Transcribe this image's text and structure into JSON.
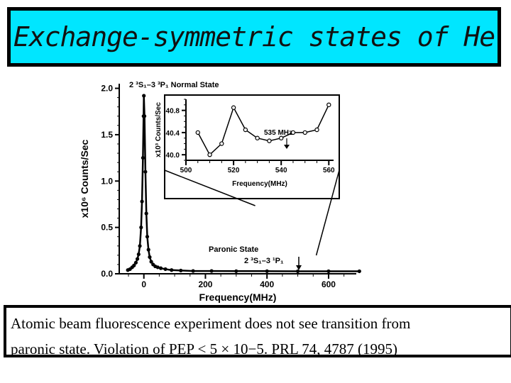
{
  "slide": {
    "title": "Exchange-symmetric states of He",
    "caption_line1": "Atomic beam fluorescence experiment does not see transition from",
    "caption_line2": "paronic state. Violation of PEP < 5 × 10−5. PRL 74, 4787 (1995)"
  },
  "chart_data": [
    {
      "type": "line",
      "xlabel": "Frequency(MHz)",
      "ylabel": "x10⁶ Counts/Sec",
      "xlim": [
        -80,
        690
      ],
      "ylim": [
        0,
        2.05
      ],
      "xticks": [
        0,
        200,
        400,
        600
      ],
      "yticks": [
        0.0,
        0.5,
        1.0,
        1.5,
        2.0
      ],
      "ytick_labels": [
        "0.0",
        "0.5",
        "1.0",
        "1.5",
        "2.0"
      ],
      "annotations": [
        {
          "label": "2 ³S₁–3 ³P₁  Normal State",
          "at_x": 0,
          "at_y": 2.0
        },
        {
          "label": "Paronic State",
          "at_x": 520,
          "at_y": 0.25
        },
        {
          "label": "2 ³S₁–3 ¹P₁",
          "at_x": 520,
          "at_y": 0.14
        }
      ],
      "x": [
        -52,
        -45,
        -38,
        -32,
        -26,
        -21,
        -17,
        -13,
        -9,
        -6,
        -3,
        -1,
        0,
        2,
        5,
        8,
        11,
        15,
        19,
        24,
        30,
        37,
        45,
        55,
        70,
        90,
        120,
        160,
        220,
        300,
        400,
        500,
        600,
        700
      ],
      "y": [
        0.04,
        0.05,
        0.07,
        0.09,
        0.12,
        0.16,
        0.21,
        0.3,
        0.5,
        0.78,
        1.25,
        1.7,
        1.92,
        1.7,
        1.1,
        0.65,
        0.4,
        0.26,
        0.18,
        0.13,
        0.1,
        0.08,
        0.07,
        0.06,
        0.05,
        0.04,
        0.035,
        0.03,
        0.03,
        0.028,
        0.028,
        0.027,
        0.027,
        0.027
      ]
    },
    {
      "type": "line",
      "xlabel": "Frequency(MHz)",
      "ylabel": "x10³ Counts/Sec",
      "xlim": [
        500,
        562
      ],
      "ylim": [
        39.9,
        41.0
      ],
      "xticks": [
        500,
        520,
        540,
        560
      ],
      "yticks": [
        40.0,
        40.4,
        40.8
      ],
      "ytick_labels": [
        "40.0",
        "40.4",
        "40.8"
      ],
      "annotations": [
        {
          "label": "535 MHz",
          "at_x": 535,
          "at_y": 40.3
        }
      ],
      "x": [
        505,
        510,
        515,
        520,
        525,
        530,
        535,
        540,
        545,
        550,
        555,
        560
      ],
      "y": [
        40.4,
        40.0,
        40.2,
        40.85,
        40.45,
        40.3,
        40.25,
        40.3,
        40.4,
        40.4,
        40.45,
        40.9
      ]
    }
  ]
}
